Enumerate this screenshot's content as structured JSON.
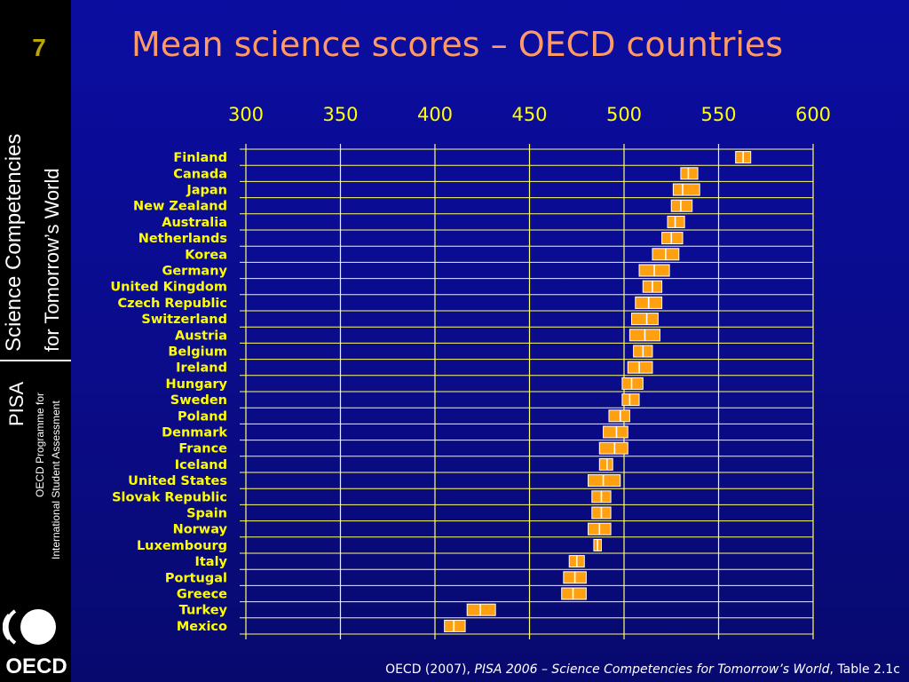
{
  "slide": {
    "number": "7"
  },
  "sidebar": {
    "line1": "Science Competencies",
    "line2": "for Tomorrow’s World",
    "pisa": "PISA",
    "programme1": "OECD Programme for",
    "programme2": "International Student Assessment",
    "logo_text": "OECD"
  },
  "title": "Mean science scores – OECD countries",
  "source": {
    "prefix": "OECD (2007), ",
    "italic": "PISA 2006 – Science Competencies for Tomorrow’s World",
    "suffix": ", Table 2.1c"
  },
  "colors": {
    "background": "#0a0c93",
    "title": "#ff9a66",
    "labels": "#ffff00",
    "grid": "#ffff66",
    "box_fill": "#ffa010",
    "box_edge": "#ffffff"
  },
  "chart_data": {
    "type": "box",
    "xlim": [
      300,
      600
    ],
    "ticks": [
      300,
      350,
      400,
      450,
      500,
      550,
      600
    ],
    "grid": true,
    "items": [
      {
        "country": "Finland",
        "low": 559,
        "mean": 563,
        "high": 567
      },
      {
        "country": "Canada",
        "low": 530,
        "mean": 534,
        "high": 539
      },
      {
        "country": "Japan",
        "low": 526,
        "mean": 531,
        "high": 540
      },
      {
        "country": "New Zealand",
        "low": 525,
        "mean": 530,
        "high": 536
      },
      {
        "country": "Australia",
        "low": 523,
        "mean": 527,
        "high": 532
      },
      {
        "country": "Netherlands",
        "low": 520,
        "mean": 525,
        "high": 531
      },
      {
        "country": "Korea",
        "low": 515,
        "mean": 522,
        "high": 529
      },
      {
        "country": "Germany",
        "low": 508,
        "mean": 516,
        "high": 524
      },
      {
        "country": "United Kingdom",
        "low": 510,
        "mean": 515,
        "high": 520
      },
      {
        "country": "Czech Republic",
        "low": 506,
        "mean": 513,
        "high": 520
      },
      {
        "country": "Switzerland",
        "low": 504,
        "mean": 512,
        "high": 518
      },
      {
        "country": "Austria",
        "low": 503,
        "mean": 511,
        "high": 519
      },
      {
        "country": "Belgium",
        "low": 505,
        "mean": 510,
        "high": 515
      },
      {
        "country": "Ireland",
        "low": 502,
        "mean": 508,
        "high": 515
      },
      {
        "country": "Hungary",
        "low": 499,
        "mean": 504,
        "high": 510
      },
      {
        "country": "Sweden",
        "low": 499,
        "mean": 503,
        "high": 508
      },
      {
        "country": "Poland",
        "low": 492,
        "mean": 498,
        "high": 503
      },
      {
        "country": "Denmark",
        "low": 489,
        "mean": 496,
        "high": 502
      },
      {
        "country": "France",
        "low": 487,
        "mean": 495,
        "high": 502
      },
      {
        "country": "Iceland",
        "low": 487,
        "mean": 491,
        "high": 494
      },
      {
        "country": "United States",
        "low": 481,
        "mean": 489,
        "high": 498
      },
      {
        "country": "Slovak Republic",
        "low": 483,
        "mean": 488,
        "high": 493
      },
      {
        "country": "Spain",
        "low": 483,
        "mean": 488,
        "high": 493
      },
      {
        "country": "Norway",
        "low": 481,
        "mean": 487,
        "high": 493
      },
      {
        "country": "Luxembourg",
        "low": 484,
        "mean": 486,
        "high": 488
      },
      {
        "country": "Italy",
        "low": 471,
        "mean": 475,
        "high": 479
      },
      {
        "country": "Portugal",
        "low": 468,
        "mean": 474,
        "high": 480
      },
      {
        "country": "Greece",
        "low": 467,
        "mean": 473,
        "high": 480
      },
      {
        "country": "Turkey",
        "low": 417,
        "mean": 424,
        "high": 432
      },
      {
        "country": "Mexico",
        "low": 405,
        "mean": 410,
        "high": 416
      }
    ]
  }
}
